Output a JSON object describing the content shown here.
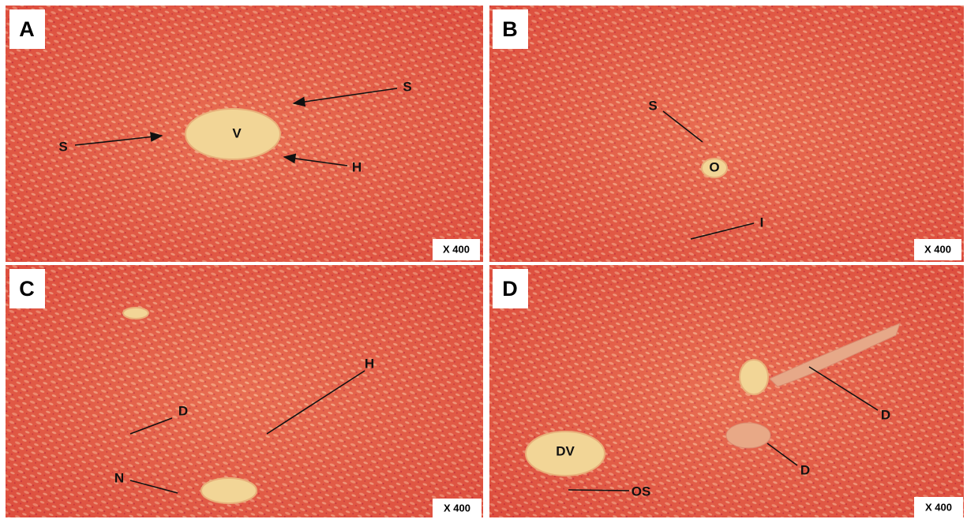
{
  "panels": [
    {
      "letter": "A",
      "magnification": "X 400",
      "labels": [
        "V",
        "S",
        "S",
        "H"
      ]
    },
    {
      "letter": "B",
      "magnification": "X 400",
      "labels": [
        "S",
        "O",
        "I"
      ]
    },
    {
      "letter": "C",
      "magnification": "X 400",
      "labels": [
        "H",
        "D",
        "N"
      ]
    },
    {
      "letter": "D",
      "magnification": "X 400",
      "labels": [
        "DV",
        "OS",
        "D",
        "D"
      ]
    }
  ]
}
